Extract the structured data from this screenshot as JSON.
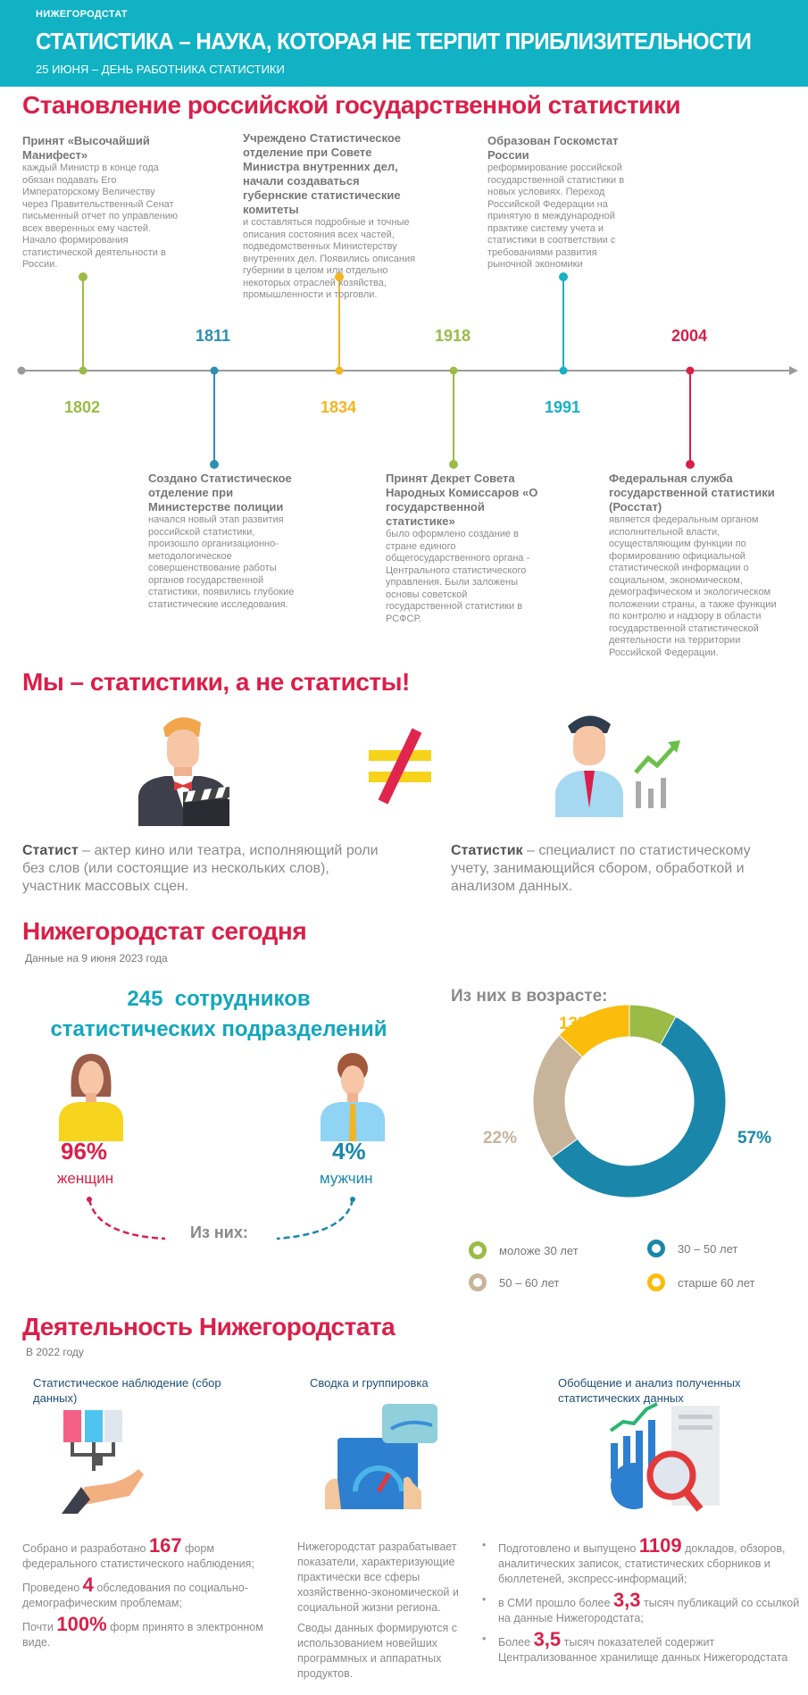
{
  "header": {
    "brand": "НИЖЕГОРОДСТАТ",
    "title": "СТАТИСТИКА – НАУКА, КОТОРАЯ НЕ ТЕРПИТ ПРИБЛИЗИТЕЛЬНОСТИ",
    "subtitle": "25 ИЮНЯ – ДЕНЬ РАБОТНИКА СТАТИСТИКИ",
    "color": "#10b2c4"
  },
  "history": {
    "title": "Становление российской государственной статистики",
    "events": [
      {
        "year": "1802",
        "color": "#9bbb47",
        "heading": "Принят «Высочайший Манифест»",
        "text": "каждый Министр в конце года обязан подавать Его Императорскому Величеству через Правительственный Сенат письменный отчет по управлению всех вверенных ему частей. Начало формирования  статистической деятельности в России."
      },
      {
        "year": "1811",
        "color": "#2c8fb3",
        "heading": "Создано Статистическое отделение при Министерстве полиции",
        "text": "начался новый этап развития российской статистики, произошло организационно-методологическое совершенствование работы органов государственной статистики, появились глубокие статистические исследования."
      },
      {
        "year": "1834",
        "color": "#f2b523",
        "heading": "Учреждено Статистическое отделение при Совете Министра внутренних дел, начали создаваться губернские статистические комитеты",
        "text": "и составляться подробные и точные описания состояния всех частей, подведомственных Министерству внутренних дел. Появились описания губернии в целом или отдельно некоторых отраслей хозяйства, промышленности и торговли."
      },
      {
        "year": "1918",
        "color": "#9bbb47",
        "heading": "Принят Декрет Совета Народных Комиссаров «О государственной статистике»",
        "text": "было оформлено создание в стране единого общегосударственного органа - Центрального статистического управления. Были заложены основы советской государственной статистики в РСФСР."
      },
      {
        "year": "1991",
        "color": "#18b1c4",
        "heading": "Образован Госкомстат России",
        "text": "реформирование российской государственной статистики в новых условиях. Переход Российской Федерации на принятую в международной практике систему учета и статистики в соответствии с требованиями развития рыночной экономики"
      },
      {
        "year": "2004",
        "color": "#d9204a",
        "heading": "Федеральная служба государственной статистики (Росстат)",
        "text": "является федеральным органом исполнительной власти, осуществляющим функции по формированию официальной статистической информации о социальном, экономическом, демографическом и экологическом положении страны, а также функции по контролю и надзору в области государственной статистической деятельности на территории Российской Федерации."
      }
    ]
  },
  "compare": {
    "title": "Мы – статистики, а не статисты!",
    "left": {
      "term": "Статист",
      "text": " – актер кино или театра, исполняющий роли без слов (или состоящие из нескольких слов), участник массовых сцен."
    },
    "right": {
      "term": "Статистик",
      "text": " – специалист по статистическому учету, занимающийся сбором, обработкой и анализом данных."
    }
  },
  "today": {
    "title": "Нижегородстат сегодня",
    "date": "Данные на 9 июня 2023 года",
    "staff_count": "245",
    "staff_label1": "сотрудников",
    "staff_label2": "статистических подразделений",
    "women_pct": "96%",
    "women_label": "женщин",
    "men_pct": "4%",
    "men_label": "мужчин",
    "of_them": "Из них:",
    "age_title": "Из них в возрасте:"
  },
  "chart_data": {
    "type": "pie",
    "donut": true,
    "title": "Из них в возрасте:",
    "slices": [
      {
        "label": "моложе 30 лет",
        "value": 8,
        "text": "8%",
        "color": "#9bbb47"
      },
      {
        "label": "30 – 50 лет",
        "value": 57,
        "text": "57%",
        "color": "#1a87aa"
      },
      {
        "label": "50 – 60 лет",
        "value": 22,
        "text": "22%",
        "color": "#c7b49b"
      },
      {
        "label": "старше 60 лет",
        "value": 13,
        "text": "13%",
        "color": "#fbbd0b"
      }
    ]
  },
  "activity": {
    "title": "Деятельность Нижегородстата",
    "period": "В 2022 году",
    "col1": {
      "heading": "Статистическое наблюдение (сбор данных)",
      "items": [
        {
          "pre": "Собрано и разработано ",
          "num": "167",
          "post": " форм федерального статистического наблюдения;"
        },
        {
          "pre": "Проведено ",
          "num": "4",
          "post": " обследования по социально-демографическим проблемам;"
        },
        {
          "pre": "Почти ",
          "num": "100%",
          "post": " форм принято в электронном виде."
        }
      ]
    },
    "col2": {
      "heading": "Сводка и группировка",
      "text1": "Нижегородстат разрабатывает показатели, характеризующие практически все сферы хозяйственно-экономической и социальной жизни региона.",
      "text2": "Своды данных формируются с использованием новейших программных и аппаратных продуктов."
    },
    "col3": {
      "heading": "Обобщение и анализ полученных статистических данных",
      "items": [
        {
          "pre": "Подготовлено и выпущено ",
          "num": "1109",
          "post": " докладов, обзоров, аналитических записок, статистических сборников и бюллетеней, экспресс-информаций;"
        },
        {
          "pre": "в СМИ прошло более ",
          "num": "3,3",
          "post": " тысяч публикаций со ссылкой на данные Нижегородстата;"
        },
        {
          "pre": "Более ",
          "num": "3,5",
          "post": " тысяч показателей содержит Централизованное хранилище данных Нижегородстата"
        }
      ]
    }
  }
}
